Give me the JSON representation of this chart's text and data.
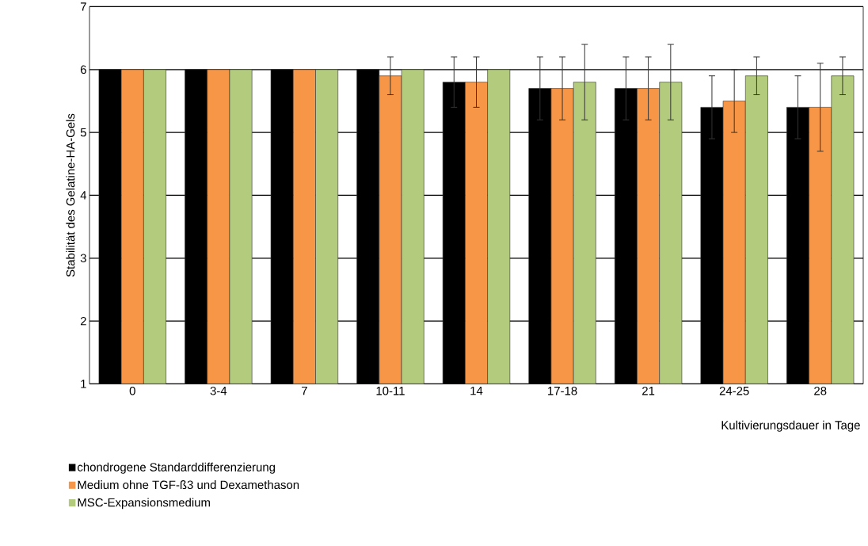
{
  "chart_data": {
    "type": "bar",
    "xlabel": "Kultivierungsdauer in Tage",
    "ylabel": "Stabilität des Gelatine-HA-Gels",
    "categories": [
      "0",
      "3-4",
      "7",
      "10-11",
      "14",
      "17-18",
      "21",
      "24-25",
      "28"
    ],
    "series": [
      {
        "name": "chondrogene Standarddifferenzierung",
        "color": "#000000",
        "values": [
          6,
          6,
          6,
          6,
          5.8,
          5.7,
          5.7,
          5.4,
          5.4
        ],
        "errors": [
          null,
          null,
          null,
          null,
          0.4,
          0.5,
          0.5,
          0.5,
          0.5
        ]
      },
      {
        "name": "Medium ohne TGF-ß3 und Dexamethason",
        "color": "#f79646",
        "values": [
          6,
          6,
          6,
          5.9,
          5.8,
          5.7,
          5.7,
          5.5,
          5.4
        ],
        "errors": [
          null,
          null,
          null,
          0.3,
          0.4,
          0.5,
          0.5,
          0.5,
          0.7
        ]
      },
      {
        "name": "MSC-Expansionsmedium",
        "color": "#b2cb7d",
        "values": [
          6,
          6,
          6,
          6,
          6,
          5.8,
          5.8,
          5.9,
          5.9
        ],
        "errors": [
          null,
          null,
          null,
          null,
          null,
          0.6,
          0.6,
          0.3,
          0.3
        ]
      }
    ],
    "ylim": [
      1,
      7
    ],
    "yticks": [
      1,
      2,
      3,
      4,
      5,
      6,
      7
    ],
    "grid": "y",
    "legend": "bottom"
  }
}
